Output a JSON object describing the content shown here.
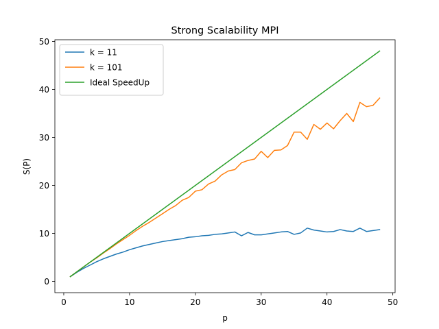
{
  "chart_data": {
    "type": "line",
    "title": "Strong Scalability MPI",
    "xlabel": "p",
    "ylabel": "S(P)",
    "xlim": [
      -1.35,
      50.35
    ],
    "ylim": [
      -2.35,
      50.35
    ],
    "xticks": [
      0,
      10,
      20,
      30,
      40,
      50
    ],
    "yticks": [
      0,
      10,
      20,
      30,
      40,
      50
    ],
    "x": [
      1,
      2,
      3,
      4,
      5,
      6,
      7,
      8,
      9,
      10,
      11,
      12,
      13,
      14,
      15,
      16,
      17,
      18,
      19,
      20,
      21,
      22,
      23,
      24,
      25,
      26,
      27,
      28,
      29,
      30,
      31,
      32,
      33,
      34,
      35,
      36,
      37,
      38,
      39,
      40,
      41,
      42,
      43,
      44,
      45,
      46,
      47,
      48
    ],
    "grid": false,
    "legend_position": "upper-left",
    "series": [
      {
        "name": "k = 11",
        "color": "#1f77b4",
        "values": [
          1.0,
          1.9,
          2.7,
          3.4,
          4.1,
          4.7,
          5.2,
          5.7,
          6.1,
          6.6,
          7.0,
          7.4,
          7.7,
          8.0,
          8.3,
          8.5,
          8.7,
          8.9,
          9.2,
          9.3,
          9.5,
          9.6,
          9.8,
          9.9,
          10.1,
          10.3,
          9.5,
          10.2,
          9.7,
          9.7,
          9.9,
          10.1,
          10.3,
          10.4,
          9.8,
          10.1,
          11.1,
          10.7,
          10.5,
          10.3,
          10.4,
          10.8,
          10.5,
          10.4,
          11.1,
          10.4,
          10.6,
          10.8
        ]
      },
      {
        "name": "k = 101",
        "color": "#ff7f0e",
        "values": [
          1.0,
          2.0,
          3.0,
          4.0,
          4.9,
          5.9,
          6.8,
          7.8,
          8.7,
          9.6,
          10.6,
          11.5,
          12.3,
          13.2,
          14.1,
          15.0,
          15.8,
          16.9,
          17.5,
          18.8,
          19.1,
          20.3,
          20.9,
          22.2,
          23.0,
          23.3,
          24.7,
          25.2,
          25.5,
          27.1,
          25.8,
          27.3,
          27.4,
          28.3,
          31.1,
          31.1,
          29.6,
          32.7,
          31.7,
          33.0,
          31.8,
          33.5,
          35.0,
          33.3,
          37.3,
          36.4,
          36.7,
          38.2
        ]
      },
      {
        "name": "Ideal SpeedUp",
        "color": "#2ca02c",
        "values": [
          1,
          2,
          3,
          4,
          5,
          6,
          7,
          8,
          9,
          10,
          11,
          12,
          13,
          14,
          15,
          16,
          17,
          18,
          19,
          20,
          21,
          22,
          23,
          24,
          25,
          26,
          27,
          28,
          29,
          30,
          31,
          32,
          33,
          34,
          35,
          36,
          37,
          38,
          39,
          40,
          41,
          42,
          43,
          44,
          45,
          46,
          47,
          48
        ]
      }
    ]
  }
}
